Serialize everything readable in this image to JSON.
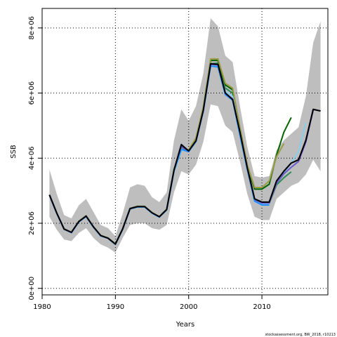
{
  "chart_data": {
    "type": "line",
    "title": "",
    "xlabel": "Years",
    "ylabel": "SSB",
    "xlim": [
      1980,
      2019
    ],
    "ylim": [
      -200000,
      8600000
    ],
    "grid": true,
    "xticks": [
      {
        "value": 1980,
        "label": "1980"
      },
      {
        "value": 1990,
        "label": "1990"
      },
      {
        "value": 2000,
        "label": "2000"
      },
      {
        "value": 2010,
        "label": "2010"
      }
    ],
    "yticks": [
      {
        "value": 0,
        "label": "0e+00"
      },
      {
        "value": 2000000,
        "label": "2e+06"
      },
      {
        "value": 4000000,
        "label": "4e+06"
      },
      {
        "value": 6000000,
        "label": "6e+06"
      },
      {
        "value": 8000000,
        "label": "8e+06"
      }
    ],
    "confidence_band": {
      "color": "#bebebe",
      "x": [
        1981,
        1982,
        1983,
        1984,
        1985,
        1986,
        1987,
        1988,
        1989,
        1990,
        1991,
        1992,
        1993,
        1994,
        1995,
        1996,
        1997,
        1998,
        1999,
        2000,
        2001,
        2002,
        2003,
        2004,
        2005,
        2006,
        2007,
        2008,
        2009,
        2010,
        2011,
        2012,
        2013,
        2014,
        2015,
        2016,
        2017,
        2018
      ],
      "upper": [
        3650000,
        2900000,
        2250000,
        2150000,
        2550000,
        2750000,
        2350000,
        1950000,
        1850000,
        1600000,
        2300000,
        3100000,
        3200000,
        3150000,
        2800000,
        2650000,
        2950000,
        4550000,
        5500000,
        5150000,
        5600000,
        6600000,
        8300000,
        8050000,
        7150000,
        6950000,
        5600000,
        4350000,
        3450000,
        3400000,
        3450000,
        4250000,
        4550000,
        4750000,
        4950000,
        5900000,
        7550000,
        8200000
      ],
      "lower": [
        2200000,
        1800000,
        1500000,
        1450000,
        1700000,
        1850000,
        1550000,
        1350000,
        1250000,
        1100000,
        1550000,
        1950000,
        2000000,
        2000000,
        1850000,
        1800000,
        1950000,
        2950000,
        3600000,
        3500000,
        3800000,
        4500000,
        5650000,
        5600000,
        5000000,
        4800000,
        3900000,
        2900000,
        2200000,
        2100000,
        2100000,
        2750000,
        2950000,
        3150000,
        3250000,
        3500000,
        3950000,
        3600000
      ]
    },
    "series": [
      {
        "color": "#2e8b57",
        "x": [
          1981,
          1982,
          1983,
          1984,
          1985,
          1986,
          1987,
          1988,
          1989,
          1990,
          1991,
          1992,
          1993,
          1994,
          1995,
          1996,
          1997,
          1998,
          1999,
          2000,
          2001,
          2002,
          2003,
          2004,
          2005,
          2006,
          2007,
          2008,
          2009,
          2010,
          2011,
          2012,
          2013,
          2014
        ],
        "values": [
          2870000,
          2310000,
          1820000,
          1720000,
          2050000,
          2220000,
          1890000,
          1620000,
          1540000,
          1360000,
          1830000,
          2450000,
          2510000,
          2510000,
          2320000,
          2200000,
          2420000,
          3610000,
          4280000,
          4230000,
          4520000,
          5480000,
          6900000,
          6920000,
          6150000,
          6000000,
          4830000,
          3700000,
          2700000,
          2600000,
          2600000,
          3180000,
          3400000,
          3580000
        ]
      },
      {
        "color": "#006400",
        "x": [
          1981,
          1982,
          1983,
          1984,
          1985,
          1986,
          1987,
          1988,
          1989,
          1990,
          1991,
          1992,
          1993,
          1994,
          1995,
          1996,
          1997,
          1998,
          1999,
          2000,
          2001,
          2002,
          2003,
          2004,
          2005,
          2006,
          2007,
          2008,
          2009,
          2010,
          2011,
          2012,
          2013,
          2014
        ],
        "values": [
          2870000,
          2310000,
          1830000,
          1720000,
          2060000,
          2230000,
          1890000,
          1620000,
          1550000,
          1360000,
          1840000,
          2460000,
          2520000,
          2520000,
          2320000,
          2200000,
          2430000,
          3650000,
          4320000,
          4250000,
          4600000,
          5550000,
          7000000,
          7000000,
          6250000,
          6100000,
          4900000,
          3750000,
          3050000,
          3050000,
          3200000,
          4100000,
          4800000,
          5250000
        ]
      },
      {
        "color": "#9b9b44",
        "x": [
          1981,
          1982,
          1983,
          1984,
          1985,
          1986,
          1987,
          1988,
          1989,
          1990,
          1991,
          1992,
          1993,
          1994,
          1995,
          1996,
          1997,
          1998,
          1999,
          2000,
          2001,
          2002,
          2003,
          2004,
          2005,
          2006,
          2007,
          2008,
          2009,
          2010,
          2011,
          2012,
          2013
        ],
        "values": [
          2880000,
          2320000,
          1830000,
          1730000,
          2060000,
          2230000,
          1900000,
          1630000,
          1550000,
          1370000,
          1840000,
          2460000,
          2520000,
          2520000,
          2330000,
          2210000,
          2430000,
          3650000,
          4300000,
          4260000,
          4620000,
          5580000,
          7050000,
          7050000,
          6300000,
          6150000,
          4950000,
          3800000,
          3100000,
          3100000,
          3300000,
          4050000,
          4450000
        ]
      },
      {
        "color": "#87ceeb",
        "x": [
          1981,
          1982,
          1983,
          1984,
          1985,
          1986,
          1987,
          1988,
          1989,
          1990,
          1991,
          1992,
          1993,
          1994,
          1995,
          1996,
          1997,
          1998,
          1999,
          2000,
          2001,
          2002,
          2003,
          2004,
          2005,
          2006,
          2007,
          2008,
          2009,
          2010,
          2011,
          2012,
          2013,
          2014,
          2015,
          2016
        ],
        "values": [
          2860000,
          2300000,
          1820000,
          1710000,
          2040000,
          2210000,
          1880000,
          1610000,
          1540000,
          1350000,
          1820000,
          2440000,
          2500000,
          2500000,
          2310000,
          2190000,
          2400000,
          3590000,
          4260000,
          4210000,
          4520000,
          5450000,
          6850000,
          6850000,
          6050000,
          5900000,
          4750000,
          3700000,
          2700000,
          2580000,
          2600000,
          3250000,
          3550000,
          3850000,
          4200000,
          5100000
        ]
      },
      {
        "color": "#1a237e",
        "x": [
          1981,
          1982,
          1983,
          1984,
          1985,
          1986,
          1987,
          1988,
          1989,
          1990,
          1991,
          1992,
          1993,
          1994,
          1995,
          1996,
          1997,
          1998,
          1999,
          2000,
          2001,
          2002,
          2003,
          2004,
          2005,
          2006,
          2007,
          2008,
          2009,
          2010,
          2011,
          2012,
          2013,
          2014,
          2015,
          2016,
          2017,
          2018
        ],
        "values": [
          2870000,
          2310000,
          1820000,
          1720000,
          2050000,
          2220000,
          1890000,
          1620000,
          1540000,
          1360000,
          1830000,
          2450000,
          2510000,
          2510000,
          2320000,
          2200000,
          2420000,
          3630000,
          4420000,
          4220000,
          4530000,
          5470000,
          6900000,
          6880000,
          6000000,
          5800000,
          4800000,
          3700000,
          2750000,
          2650000,
          2650000,
          3300000,
          3600000,
          3850000,
          3950000,
          4550000,
          5500000,
          5450000
        ]
      },
      {
        "color": "#6a5acd",
        "x": [
          1981,
          1982,
          1983,
          1984,
          1985,
          1986,
          1987,
          1988,
          1989,
          1990,
          1991,
          1992,
          1993,
          1994,
          1995,
          1996,
          1997,
          1998,
          1999,
          2000,
          2001,
          2002,
          2003,
          2004,
          2005,
          2006,
          2007,
          2008,
          2009,
          2010,
          2011,
          2012,
          2013,
          2014,
          2015,
          2016,
          2017
        ],
        "values": [
          2870000,
          2310000,
          1820000,
          1720000,
          2050000,
          2220000,
          1890000,
          1620000,
          1540000,
          1360000,
          1830000,
          2450000,
          2510000,
          2510000,
          2320000,
          2200000,
          2420000,
          3620000,
          4350000,
          4210000,
          4520000,
          5460000,
          6880000,
          6860000,
          6000000,
          5820000,
          4780000,
          3700000,
          2720000,
          2620000,
          2620000,
          3230000,
          3520000,
          3720000,
          3900000,
          4500000,
          5480000
        ]
      },
      {
        "color": "#1e90ff",
        "x": [
          1981,
          1982,
          1983,
          1984,
          1985,
          1986,
          1987,
          1988,
          1989,
          1990,
          1991,
          1992,
          1993,
          1994,
          1995,
          1996,
          1997,
          1998,
          1999,
          2000,
          2001,
          2002,
          2003,
          2004,
          2005,
          2006,
          2007,
          2008,
          2009,
          2010,
          2011
        ],
        "values": [
          2860000,
          2300000,
          1820000,
          1710000,
          2040000,
          2210000,
          1880000,
          1610000,
          1540000,
          1350000,
          1820000,
          2440000,
          2500000,
          2500000,
          2310000,
          2190000,
          2410000,
          3600000,
          4270000,
          4200000,
          4510000,
          5440000,
          6830000,
          6800000,
          5950000,
          5780000,
          4700000,
          3650000,
          2680000,
          2560000,
          2560000
        ]
      },
      {
        "color": "#000000",
        "x": [
          1981,
          1982,
          1983,
          1984,
          1985,
          1986,
          1987,
          1988,
          1989,
          1990,
          1991,
          1992,
          1993,
          1994,
          1995,
          1996,
          1997,
          1998,
          1999,
          2000,
          2001,
          2002,
          2003,
          2004,
          2005,
          2006,
          2007,
          2008,
          2009,
          2010,
          2011,
          2012,
          2013,
          2014,
          2015,
          2016,
          2017,
          2018
        ],
        "values": [
          2870000,
          2310000,
          1820000,
          1720000,
          2050000,
          2220000,
          1890000,
          1620000,
          1540000,
          1360000,
          1830000,
          2450000,
          2510000,
          2510000,
          2320000,
          2200000,
          2420000,
          3630000,
          4410000,
          4220000,
          4530000,
          5470000,
          6900000,
          6880000,
          6000000,
          5800000,
          4800000,
          3700000,
          2750000,
          2650000,
          2650000,
          3300000,
          3600000,
          3850000,
          3950000,
          4550000,
          5500000,
          5450000
        ]
      }
    ]
  },
  "credit": "stockassessment.org, BW_2018, r10213"
}
